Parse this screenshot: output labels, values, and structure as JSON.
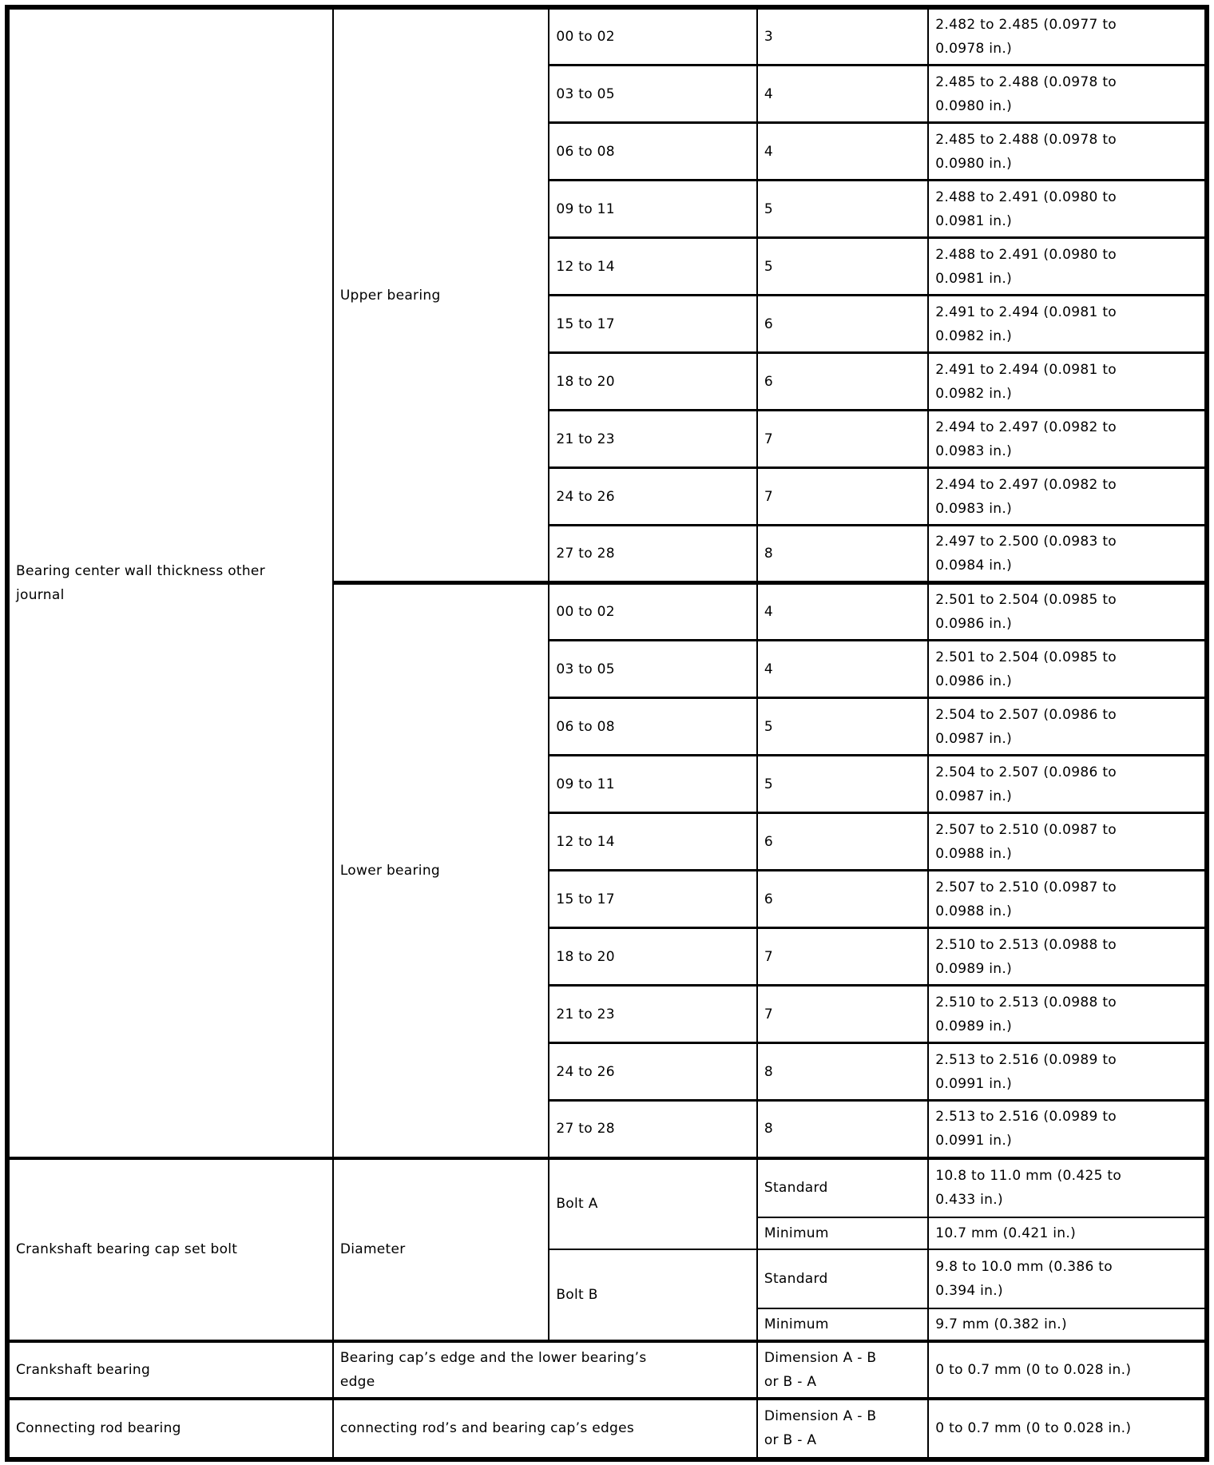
{
  "table": {
    "main": {
      "label": "Bearing center wall thickness other\njournal",
      "groups": [
        {
          "label": "Upper bearing",
          "rows": [
            {
              "range": "00 to 02",
              "number": "3",
              "value": "2.482 to 2.485 (0.0977 to\n0.0978 in.)"
            },
            {
              "range": "03 to 05",
              "number": "4",
              "value": "2.485 to 2.488 (0.0978 to\n0.0980 in.)"
            },
            {
              "range": "06 to 08",
              "number": "4",
              "value": "2.485 to 2.488 (0.0978 to\n0.0980 in.)"
            },
            {
              "range": "09 to 11",
              "number": "5",
              "value": "2.488 to 2.491 (0.0980 to\n0.0981 in.)"
            },
            {
              "range": "12 to 14",
              "number": "5",
              "value": "2.488 to 2.491 (0.0980 to\n0.0981 in.)"
            },
            {
              "range": "15 to 17",
              "number": "6",
              "value": "2.491 to 2.494 (0.0981 to\n0.0982 in.)"
            },
            {
              "range": "18 to 20",
              "number": "6",
              "value": "2.491 to 2.494 (0.0981 to\n0.0982 in.)"
            },
            {
              "range": "21 to 23",
              "number": "7",
              "value": "2.494 to 2.497 (0.0982 to\n0.0983 in.)"
            },
            {
              "range": "24 to 26",
              "number": "7",
              "value": "2.494 to 2.497 (0.0982 to\n0.0983 in.)"
            },
            {
              "range": "27 to 28",
              "number": "8",
              "value": "2.497 to 2.500 (0.0983 to\n0.0984 in.)"
            }
          ]
        },
        {
          "label": "Lower bearing",
          "rows": [
            {
              "range": "00 to 02",
              "number": "4",
              "value": "2.501 to 2.504 (0.0985 to\n0.0986 in.)"
            },
            {
              "range": "03 to 05",
              "number": "4",
              "value": "2.501 to 2.504 (0.0985 to\n0.0986 in.)"
            },
            {
              "range": "06 to 08",
              "number": "5",
              "value": "2.504 to 2.507 (0.0986 to\n0.0987 in.)"
            },
            {
              "range": "09 to 11",
              "number": "5",
              "value": "2.504 to 2.507 (0.0986 to\n0.0987 in.)"
            },
            {
              "range": "12 to 14",
              "number": "6",
              "value": "2.507 to 2.510 (0.0987 to\n0.0988 in.)"
            },
            {
              "range": "15 to 17",
              "number": "6",
              "value": "2.507 to 2.510 (0.0987 to\n0.0988 in.)"
            },
            {
              "range": "18 to 20",
              "number": "7",
              "value": "2.510 to 2.513 (0.0988 to\n0.0989 in.)"
            },
            {
              "range": "21 to 23",
              "number": "7",
              "value": "2.510 to 2.513 (0.0988 to\n0.0989 in.)"
            },
            {
              "range": "24 to 26",
              "number": "8",
              "value": "2.513 to 2.516 (0.0989 to\n0.0991 in.)"
            },
            {
              "range": "27 to 28",
              "number": "8",
              "value": "2.513 to 2.516 (0.0989 to\n0.0991 in.)"
            }
          ]
        }
      ]
    },
    "bolt": {
      "label": "Crankshaft bearing cap set bolt",
      "measure": "Diameter",
      "items": [
        {
          "label": "Bolt A",
          "specs": [
            {
              "grade": "Standard",
              "value": "10.8 to 11.0 mm (0.425 to\n0.433 in.)"
            },
            {
              "grade": "Minimum",
              "value": "10.7 mm (0.421 in.)"
            }
          ]
        },
        {
          "label": "Bolt B",
          "specs": [
            {
              "grade": "Standard",
              "value": "9.8 to 10.0 mm (0.386 to\n0.394 in.)"
            },
            {
              "grade": "Minimum",
              "value": "9.7 mm (0.382 in.)"
            }
          ]
        }
      ]
    },
    "bottom": [
      {
        "label": "Crankshaft bearing",
        "description": "Bearing cap’s edge and the lower bearing’s\nedge",
        "dimension": "Dimension A - B\nor B - A",
        "value": "0 to 0.7 mm (0 to 0.028 in.)"
      },
      {
        "label": "Connecting rod bearing",
        "description": "connecting rod’s and bearing cap’s edges",
        "dimension": "Dimension A - B\nor B - A",
        "value": "0 to 0.7 mm (0 to 0.028 in.)"
      }
    ]
  }
}
